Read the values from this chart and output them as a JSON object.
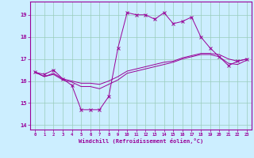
{
  "title": "",
  "xlabel": "Windchill (Refroidissement éolien,°C)",
  "ylabel": "",
  "background_color": "#cceeff",
  "line_color": "#990099",
  "grid_color": "#99ccbb",
  "xlim": [
    -0.5,
    23.5
  ],
  "ylim": [
    13.8,
    19.6
  ],
  "yticks": [
    14,
    15,
    16,
    17,
    18,
    19
  ],
  "xticks": [
    0,
    1,
    2,
    3,
    4,
    5,
    6,
    7,
    8,
    9,
    10,
    11,
    12,
    13,
    14,
    15,
    16,
    17,
    18,
    19,
    20,
    21,
    22,
    23
  ],
  "series1_x": [
    0,
    1,
    2,
    3,
    4,
    5,
    6,
    7,
    8,
    9,
    10,
    11,
    12,
    13,
    14,
    15,
    16,
    17,
    18,
    19,
    20,
    21,
    22,
    23
  ],
  "series1_y": [
    16.4,
    16.3,
    16.5,
    16.1,
    15.8,
    14.7,
    14.7,
    14.7,
    15.3,
    17.5,
    19.1,
    19.0,
    19.0,
    18.8,
    19.1,
    18.6,
    18.7,
    18.9,
    18.0,
    17.5,
    17.1,
    16.7,
    16.9,
    17.0
  ],
  "series2_x": [
    0,
    1,
    2,
    3,
    4,
    5,
    6,
    7,
    8,
    9,
    10,
    11,
    12,
    13,
    14,
    15,
    16,
    17,
    18,
    19,
    20,
    21,
    22,
    23
  ],
  "series2_y": [
    16.4,
    16.2,
    16.35,
    16.1,
    16.0,
    15.9,
    15.9,
    15.85,
    16.0,
    16.2,
    16.45,
    16.55,
    16.65,
    16.75,
    16.85,
    16.9,
    17.05,
    17.15,
    17.25,
    17.25,
    17.2,
    17.0,
    16.9,
    17.0
  ],
  "series3_x": [
    0,
    1,
    2,
    3,
    4,
    5,
    6,
    7,
    8,
    9,
    10,
    11,
    12,
    13,
    14,
    15,
    16,
    17,
    18,
    19,
    20,
    21,
    22,
    23
  ],
  "series3_y": [
    16.4,
    16.2,
    16.3,
    16.05,
    15.95,
    15.75,
    15.75,
    15.65,
    15.85,
    16.05,
    16.35,
    16.45,
    16.55,
    16.65,
    16.75,
    16.85,
    17.0,
    17.1,
    17.2,
    17.2,
    17.1,
    16.8,
    16.75,
    16.95
  ]
}
